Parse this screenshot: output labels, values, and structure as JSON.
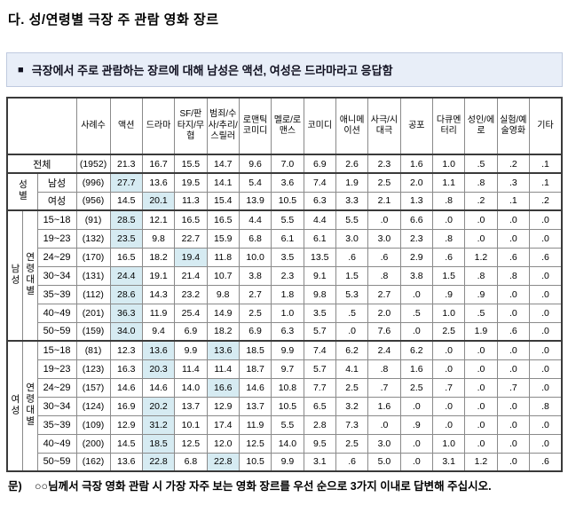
{
  "title": "다. 성/연령별 극장 주 관람 영화 장르",
  "note_bullet": "■",
  "note": "극장에서 주로 관람하는 장르에 대해 남성은 액션, 여성은 드라마라고 응답함",
  "footnote": {
    "label": "문)",
    "text": "○○님께서 극장 영화 관람 시 가장 자주 보는 영화 장르를 우선 순으로 3가지 이내로 답변해 주십시오."
  },
  "colors": {
    "note_bg": "#e8eef8",
    "note_border": "#bfcadf",
    "cell_highlight": "#d6ebf2",
    "grid_line": "#8a8a8a",
    "strong_line": "#3a3a3a"
  },
  "table": {
    "columns": [
      "사례수",
      "액션",
      "드라마",
      "SF/판타지/무협",
      "범죄/수사/추리/스릴러",
      "로맨틱코미디",
      "멜로/로맨스",
      "코미디",
      "애니메이션",
      "사극/시대극",
      "공포",
      "다큐멘터리",
      "성인/에로",
      "실험/예술영화",
      "기타"
    ],
    "rows": [
      {
        "label": "전체",
        "label_span": 3,
        "n": "(1952)",
        "values": [
          "21.3",
          "16.7",
          "15.5",
          "14.7",
          "9.6",
          "7.0",
          "6.9",
          "2.6",
          "2.3",
          "1.6",
          "1.0",
          ".5",
          ".2",
          ".1"
        ]
      },
      {
        "groups": [
          {
            "label": "성별",
            "rowspan": 2,
            "colspan": 2,
            "vertical": true
          }
        ],
        "label": "남성",
        "n": "(996)",
        "section_start": true,
        "highlights": [
          0
        ],
        "values": [
          "27.7",
          "13.6",
          "19.5",
          "14.1",
          "5.4",
          "3.6",
          "7.4",
          "1.9",
          "2.5",
          "2.0",
          "1.1",
          ".8",
          ".3",
          ".1"
        ]
      },
      {
        "label": "여성",
        "n": "(956)",
        "highlights": [
          1
        ],
        "values": [
          "14.5",
          "20.1",
          "11.3",
          "15.4",
          "13.9",
          "10.5",
          "6.3",
          "3.3",
          "2.1",
          "1.3",
          ".8",
          ".2",
          ".1",
          ".2"
        ]
      },
      {
        "groups": [
          {
            "label": "남성",
            "rowspan": 7,
            "vertical": true
          },
          {
            "label": "연령대별",
            "rowspan": 7,
            "vertical": true
          }
        ],
        "label": "15~18",
        "n": "(91)",
        "section_start": true,
        "highlights": [
          0
        ],
        "values": [
          "28.5",
          "12.1",
          "16.5",
          "16.5",
          "4.4",
          "5.5",
          "4.4",
          "5.5",
          ".0",
          "6.6",
          ".0",
          ".0",
          ".0",
          ".0"
        ]
      },
      {
        "label": "19~23",
        "n": "(132)",
        "highlights": [
          0
        ],
        "values": [
          "23.5",
          "9.8",
          "22.7",
          "15.9",
          "6.8",
          "6.1",
          "6.1",
          "3.0",
          "3.0",
          "2.3",
          ".8",
          ".0",
          ".0",
          ".0"
        ]
      },
      {
        "label": "24~29",
        "n": "(170)",
        "highlights": [
          2
        ],
        "values": [
          "16.5",
          "18.2",
          "19.4",
          "11.8",
          "10.0",
          "3.5",
          "13.5",
          ".6",
          ".6",
          "2.9",
          ".6",
          "1.2",
          ".6",
          ".6"
        ]
      },
      {
        "label": "30~34",
        "n": "(131)",
        "highlights": [
          0
        ],
        "values": [
          "24.4",
          "19.1",
          "21.4",
          "10.7",
          "3.8",
          "2.3",
          "9.1",
          "1.5",
          ".8",
          "3.8",
          "1.5",
          ".8",
          ".8",
          ".0"
        ]
      },
      {
        "label": "35~39",
        "n": "(112)",
        "highlights": [
          0
        ],
        "values": [
          "28.6",
          "14.3",
          "23.2",
          "9.8",
          "2.7",
          "1.8",
          "9.8",
          "5.3",
          "2.7",
          ".0",
          ".9",
          ".9",
          ".0",
          ".0"
        ]
      },
      {
        "label": "40~49",
        "n": "(201)",
        "highlights": [
          0
        ],
        "values": [
          "36.3",
          "11.9",
          "25.4",
          "14.9",
          "2.5",
          "1.0",
          "3.5",
          ".5",
          "2.0",
          ".5",
          "1.0",
          ".5",
          ".0",
          ".0"
        ]
      },
      {
        "label": "50~59",
        "n": "(159)",
        "highlights": [
          0
        ],
        "values": [
          "34.0",
          "9.4",
          "6.9",
          "18.2",
          "6.9",
          "6.3",
          "5.7",
          ".0",
          "7.6",
          ".0",
          "2.5",
          "1.9",
          ".6",
          ".0"
        ]
      },
      {
        "groups": [
          {
            "label": "여성",
            "rowspan": 7,
            "vertical": true
          },
          {
            "label": "연령대별",
            "rowspan": 7,
            "vertical": true
          }
        ],
        "label": "15~18",
        "n": "(81)",
        "section_start": true,
        "highlights": [
          1,
          3
        ],
        "values": [
          "12.3",
          "13.6",
          "9.9",
          "13.6",
          "18.5",
          "9.9",
          "7.4",
          "6.2",
          "2.4",
          "6.2",
          ".0",
          ".0",
          ".0",
          ".0"
        ]
      },
      {
        "label": "19~23",
        "n": "(123)",
        "highlights": [
          1
        ],
        "values": [
          "16.3",
          "20.3",
          "11.4",
          "11.4",
          "18.7",
          "9.7",
          "5.7",
          "4.1",
          ".8",
          "1.6",
          ".0",
          ".0",
          ".0",
          ".0"
        ]
      },
      {
        "label": "24~29",
        "n": "(157)",
        "highlights": [
          3
        ],
        "values": [
          "14.6",
          "14.6",
          "14.0",
          "16.6",
          "14.6",
          "10.8",
          "7.7",
          "2.5",
          ".7",
          "2.5",
          ".7",
          ".0",
          ".7",
          ".0"
        ]
      },
      {
        "label": "30~34",
        "n": "(124)",
        "highlights": [
          1
        ],
        "values": [
          "16.9",
          "20.2",
          "13.7",
          "12.9",
          "13.7",
          "10.5",
          "6.5",
          "3.2",
          "1.6",
          ".0",
          ".0",
          ".0",
          ".0",
          ".8"
        ]
      },
      {
        "label": "35~39",
        "n": "(109)",
        "highlights": [
          1
        ],
        "values": [
          "12.9",
          "31.2",
          "10.1",
          "17.4",
          "11.9",
          "5.5",
          "2.8",
          "7.3",
          ".0",
          ".9",
          ".0",
          ".0",
          ".0",
          ".0"
        ]
      },
      {
        "label": "40~49",
        "n": "(200)",
        "highlights": [
          1
        ],
        "values": [
          "14.5",
          "18.5",
          "12.5",
          "12.0",
          "12.5",
          "14.0",
          "9.5",
          "2.5",
          "3.0",
          ".0",
          "1.0",
          ".0",
          ".0",
          ".0"
        ]
      },
      {
        "label": "50~59",
        "n": "(162)",
        "highlights": [
          1,
          3
        ],
        "values": [
          "13.6",
          "22.8",
          "6.8",
          "22.8",
          "10.5",
          "9.9",
          "3.1",
          ".6",
          "5.0",
          ".0",
          "3.1",
          "1.2",
          ".0",
          ".6"
        ]
      }
    ]
  }
}
